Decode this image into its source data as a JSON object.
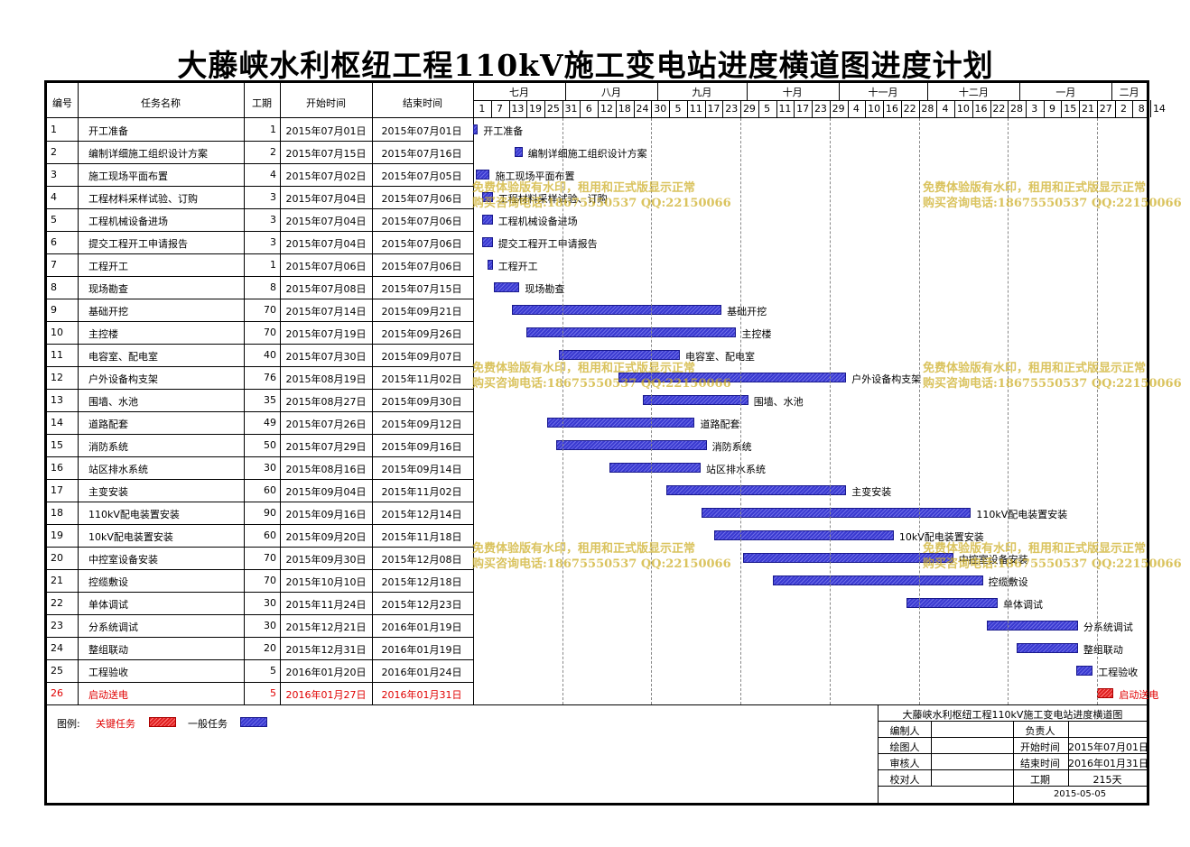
{
  "title": "大藤峡水利枢纽工程110kV施工变电站进度横道图进度计划",
  "headers": {
    "no": "编号",
    "name": "任务名称",
    "dur": "工期",
    "start": "开始时间",
    "end": "结束时间"
  },
  "months": [
    "七月",
    "八月",
    "九月",
    "十月",
    "十一月",
    "十二月",
    "一月",
    "二月"
  ],
  "days": [
    "1",
    "7",
    "13",
    "19",
    "25",
    "31",
    "6",
    "12",
    "18",
    "24",
    "30",
    "5",
    "11",
    "17",
    "23",
    "29",
    "5",
    "11",
    "17",
    "23",
    "29",
    "4",
    "10",
    "16",
    "22",
    "28",
    "4",
    "10",
    "16",
    "22",
    "28",
    "3",
    "9",
    "15",
    "21",
    "27",
    "2",
    "8",
    "14"
  ],
  "tasks": [
    {
      "no": "1",
      "name": "开工准备",
      "dur": "1",
      "start": "2015年07月01日",
      "end": "2015年07月01日",
      "s": 0,
      "d": 1,
      "critical": false
    },
    {
      "no": "2",
      "name": "编制详细施工组织设计方案",
      "dur": "2",
      "start": "2015年07月15日",
      "end": "2015年07月16日",
      "s": 14,
      "d": 2,
      "critical": false
    },
    {
      "no": "3",
      "name": "施工现场平面布置",
      "dur": "4",
      "start": "2015年07月02日",
      "end": "2015年07月05日",
      "s": 1,
      "d": 4,
      "critical": false
    },
    {
      "no": "4",
      "name": "工程材料采样试验、订购",
      "dur": "3",
      "start": "2015年07月04日",
      "end": "2015年07月06日",
      "s": 3,
      "d": 3,
      "critical": false
    },
    {
      "no": "5",
      "name": "工程机械设备进场",
      "dur": "3",
      "start": "2015年07月04日",
      "end": "2015年07月06日",
      "s": 3,
      "d": 3,
      "critical": false
    },
    {
      "no": "6",
      "name": "提交工程开工申请报告",
      "dur": "3",
      "start": "2015年07月04日",
      "end": "2015年07月06日",
      "s": 3,
      "d": 3,
      "critical": false
    },
    {
      "no": "7",
      "name": "工程开工",
      "dur": "1",
      "start": "2015年07月06日",
      "end": "2015年07月06日",
      "s": 5,
      "d": 1,
      "critical": false
    },
    {
      "no": "8",
      "name": "现场勘查",
      "dur": "8",
      "start": "2015年07月08日",
      "end": "2015年07月15日",
      "s": 7,
      "d": 8,
      "critical": false
    },
    {
      "no": "9",
      "name": "基础开挖",
      "dur": "70",
      "start": "2015年07月14日",
      "end": "2015年09月21日",
      "s": 13,
      "d": 70,
      "critical": false
    },
    {
      "no": "10",
      "name": "主控楼",
      "dur": "70",
      "start": "2015年07月19日",
      "end": "2015年09月26日",
      "s": 18,
      "d": 70,
      "critical": false
    },
    {
      "no": "11",
      "name": "电容室、配电室",
      "dur": "40",
      "start": "2015年07月30日",
      "end": "2015年09月07日",
      "s": 29,
      "d": 40,
      "critical": false
    },
    {
      "no": "12",
      "name": "户外设备构支架",
      "dur": "76",
      "start": "2015年08月19日",
      "end": "2015年11月02日",
      "s": 49,
      "d": 76,
      "critical": false
    },
    {
      "no": "13",
      "name": "围墙、水池",
      "dur": "35",
      "start": "2015年08月27日",
      "end": "2015年09月30日",
      "s": 57,
      "d": 35,
      "critical": false
    },
    {
      "no": "14",
      "name": "道路配套",
      "dur": "49",
      "start": "2015年07月26日",
      "end": "2015年09月12日",
      "s": 25,
      "d": 49,
      "critical": false
    },
    {
      "no": "15",
      "name": "消防系统",
      "dur": "50",
      "start": "2015年07月29日",
      "end": "2015年09月16日",
      "s": 28,
      "d": 50,
      "critical": false
    },
    {
      "no": "16",
      "name": "站区排水系统",
      "dur": "30",
      "start": "2015年08月16日",
      "end": "2015年09月14日",
      "s": 46,
      "d": 30,
      "critical": false
    },
    {
      "no": "17",
      "name": "主变安装",
      "dur": "60",
      "start": "2015年09月04日",
      "end": "2015年11月02日",
      "s": 65,
      "d": 60,
      "critical": false
    },
    {
      "no": "18",
      "name": "110kV配电装置安装",
      "dur": "90",
      "start": "2015年09月16日",
      "end": "2015年12月14日",
      "s": 77,
      "d": 90,
      "critical": false
    },
    {
      "no": "19",
      "name": "10kV配电装置安装",
      "dur": "60",
      "start": "2015年09月20日",
      "end": "2015年11月18日",
      "s": 81,
      "d": 60,
      "critical": false
    },
    {
      "no": "20",
      "name": "中控室设备安装",
      "dur": "70",
      "start": "2015年09月30日",
      "end": "2015年12月08日",
      "s": 91,
      "d": 70,
      "critical": false
    },
    {
      "no": "21",
      "name": "控缆敷设",
      "dur": "70",
      "start": "2015年10月10日",
      "end": "2015年12月18日",
      "s": 101,
      "d": 70,
      "critical": false
    },
    {
      "no": "22",
      "name": "单体调试",
      "dur": "30",
      "start": "2015年11月24日",
      "end": "2015年12月23日",
      "s": 146,
      "d": 30,
      "critical": false
    },
    {
      "no": "23",
      "name": "分系统调试",
      "dur": "30",
      "start": "2015年12月21日",
      "end": "2016年01月19日",
      "s": 173,
      "d": 30,
      "critical": false
    },
    {
      "no": "24",
      "name": "整组联动",
      "dur": "20",
      "start": "2015年12月31日",
      "end": "2016年01月19日",
      "s": 183,
      "d": 20,
      "critical": false
    },
    {
      "no": "25",
      "name": "工程验收",
      "dur": "5",
      "start": "2016年01月20日",
      "end": "2016年01月24日",
      "s": 203,
      "d": 5,
      "critical": false
    },
    {
      "no": "26",
      "name": "启动送电",
      "dur": "5",
      "start": "2016年01月27日",
      "end": "2016年01月31日",
      "s": 210,
      "d": 5,
      "critical": true
    }
  ],
  "legend": {
    "label": "图例:",
    "critical": "关键任务",
    "normal": "一般任务"
  },
  "titleblock": {
    "name": "大藤峡水利枢纽工程110kV施工变电站进度横道图",
    "compiler": "编制人",
    "owner": "负责人",
    "drawer": "绘图人",
    "start_label": "开始时间",
    "start_value": "2015年07月01日",
    "reviewer": "审核人",
    "end_label": "结束时间",
    "end_value": "2016年01月31日",
    "checker": "校对人",
    "dur_label": "工期",
    "dur_value": "215天",
    "date": "2015-05-05"
  },
  "watermark": {
    "line1": "免费体验版有水印，租用和正式版显示正常",
    "line2": "购买咨询电话:18675550537 QQ:22150066"
  },
  "colors": {
    "bar": "#3a3ad0",
    "critical": "#e02020",
    "watermark": "#cdaf28"
  }
}
